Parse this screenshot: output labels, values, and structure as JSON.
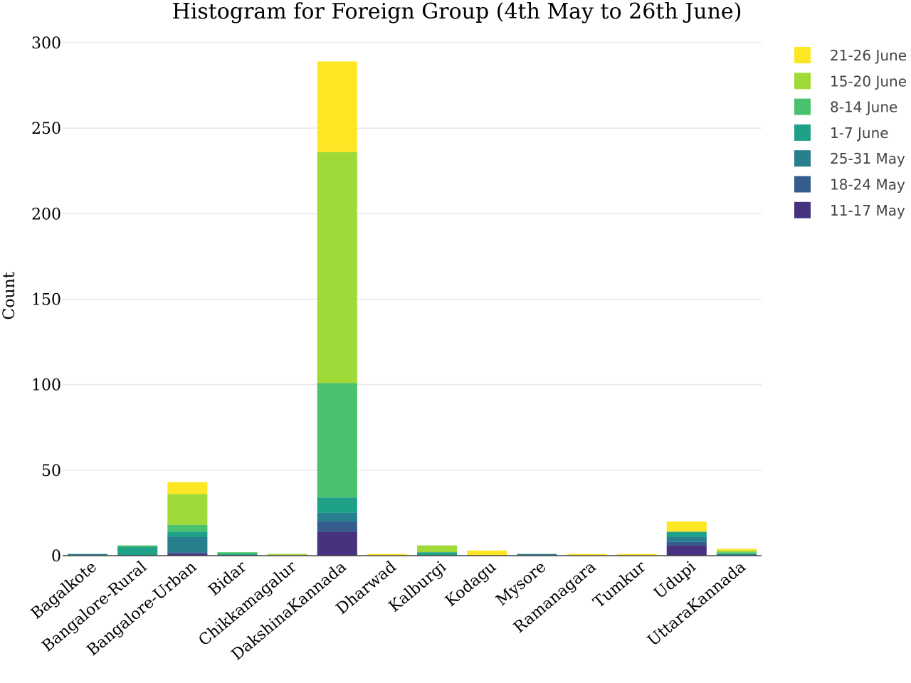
{
  "chart_data": {
    "type": "bar",
    "stacked": true,
    "title": "Histogram for Foreign Group (4th May to 26th June)",
    "xlabel": "",
    "ylabel": "Count",
    "ylim": [
      0,
      300
    ],
    "yticks": [
      0,
      50,
      100,
      150,
      200,
      250,
      300
    ],
    "grid": true,
    "legend_position": "top-right",
    "categories": [
      "Bagalkote",
      "Bangalore-Rural",
      "Bangalore-Urban",
      "Bidar",
      "Chikkamagalur",
      "DakshinaKannada",
      "Dharwad",
      "Kalburgi",
      "Kodagu",
      "Mysore",
      "Ramanagara",
      "Tumkur",
      "Udupi",
      "UttaraKannada"
    ],
    "series": [
      {
        "name": "11-17 May",
        "color": "#46327e",
        "values": [
          0,
          0,
          1,
          0,
          0,
          14,
          0,
          0,
          0,
          0,
          0,
          0,
          6,
          0
        ]
      },
      {
        "name": "18-24 May",
        "color": "#365c8d",
        "values": [
          0,
          0,
          1,
          0,
          0,
          6,
          0,
          0,
          0,
          0,
          0,
          0,
          2,
          0
        ]
      },
      {
        "name": "25-31 May",
        "color": "#277f8e",
        "values": [
          1,
          0,
          9,
          0,
          0,
          5,
          0,
          0,
          0,
          1,
          0,
          0,
          3,
          1
        ]
      },
      {
        "name": "1-7 June",
        "color": "#1fa187",
        "values": [
          0,
          5,
          3,
          1,
          0,
          9,
          0,
          2,
          0,
          0,
          0,
          0,
          3,
          0
        ]
      },
      {
        "name": "8-14 June",
        "color": "#4ac16d",
        "values": [
          0,
          1,
          4,
          1,
          0,
          67,
          0,
          0,
          0,
          0,
          0,
          0,
          0,
          1
        ]
      },
      {
        "name": "15-20 June",
        "color": "#a0da39",
        "values": [
          0,
          0,
          18,
          0,
          1,
          135,
          0,
          4,
          0,
          0,
          0,
          0,
          0,
          1
        ]
      },
      {
        "name": "21-26 June",
        "color": "#fde725",
        "values": [
          0,
          0,
          7,
          0,
          0,
          53,
          1,
          0,
          3,
          0,
          1,
          1,
          6,
          1
        ]
      }
    ],
    "legend_order": [
      "21-26 June",
      "15-20 June",
      "8-14 June",
      "1-7 June",
      "25-31 May",
      "18-24 May",
      "11-17 May"
    ]
  }
}
